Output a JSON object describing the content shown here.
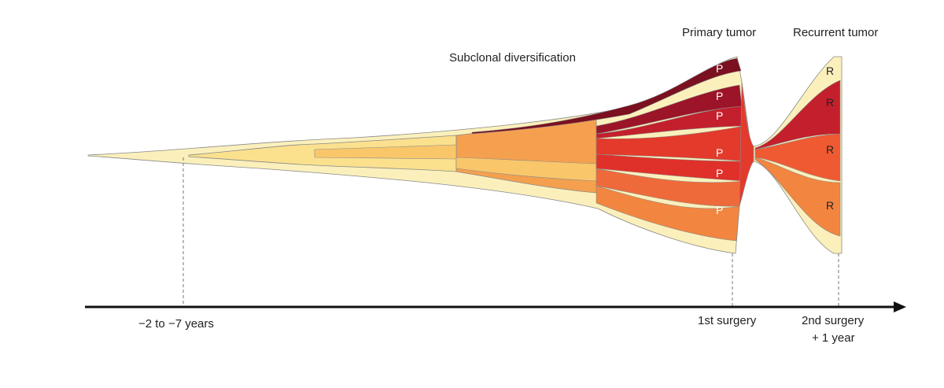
{
  "labels": {
    "subclonal": "Subclonal diversification",
    "primary": "Primary tumor",
    "recurrent": "Recurrent tumor"
  },
  "timeline": {
    "start": "−2 to −7 years",
    "first_surgery": "1st surgery",
    "second_surgery_line1": "2nd surgery",
    "second_surgery_line2": "+ 1 year"
  },
  "clone_tags": {
    "primary": [
      "P",
      "P",
      "P",
      "P",
      "P",
      "P"
    ],
    "recurrent": [
      "R",
      "R",
      "R",
      "R"
    ]
  },
  "colors": {
    "outer_pale": "#fbf0bb",
    "light_yellow": "#fbe08e",
    "yellow_orange": "#f9c76a",
    "orange": "#f5a04e",
    "orange_red": "#ef6a3a",
    "red": "#e33a2c",
    "crimson": "#c41f2c",
    "dark_red": "#9c1428",
    "maroon": "#7a1020",
    "outline": "#8a8a8a",
    "axis": "#111111"
  }
}
